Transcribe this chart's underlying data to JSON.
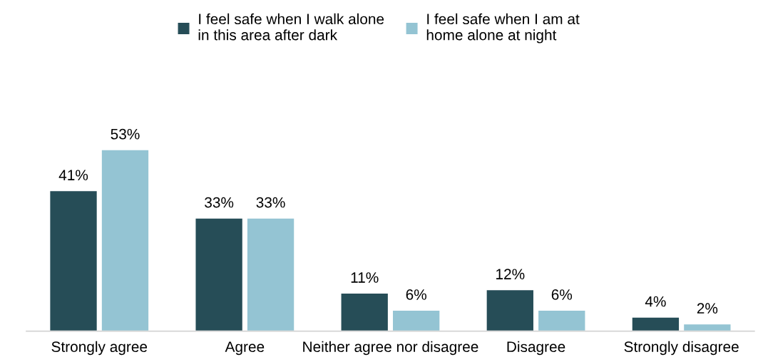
{
  "chart_data": {
    "type": "bar",
    "categories": [
      "Strongly agree",
      "Agree",
      "Neither agree nor disagree",
      "Disagree",
      "Strongly disagree"
    ],
    "series": [
      {
        "name": "I feel safe when I walk alone in this area after dark",
        "color": "#264d57",
        "values": [
          41,
          33,
          11,
          12,
          4
        ],
        "value_labels": [
          "41%",
          "33%",
          "11%",
          "12%",
          "4%"
        ]
      },
      {
        "name": "I feel safe when I am at home alone at night",
        "color": "#94c4d3",
        "values": [
          53,
          33,
          6,
          6,
          2
        ],
        "value_labels": [
          "53%",
          "33%",
          "6%",
          "6%",
          "2%"
        ]
      }
    ],
    "legend": "top",
    "grid": false
  }
}
